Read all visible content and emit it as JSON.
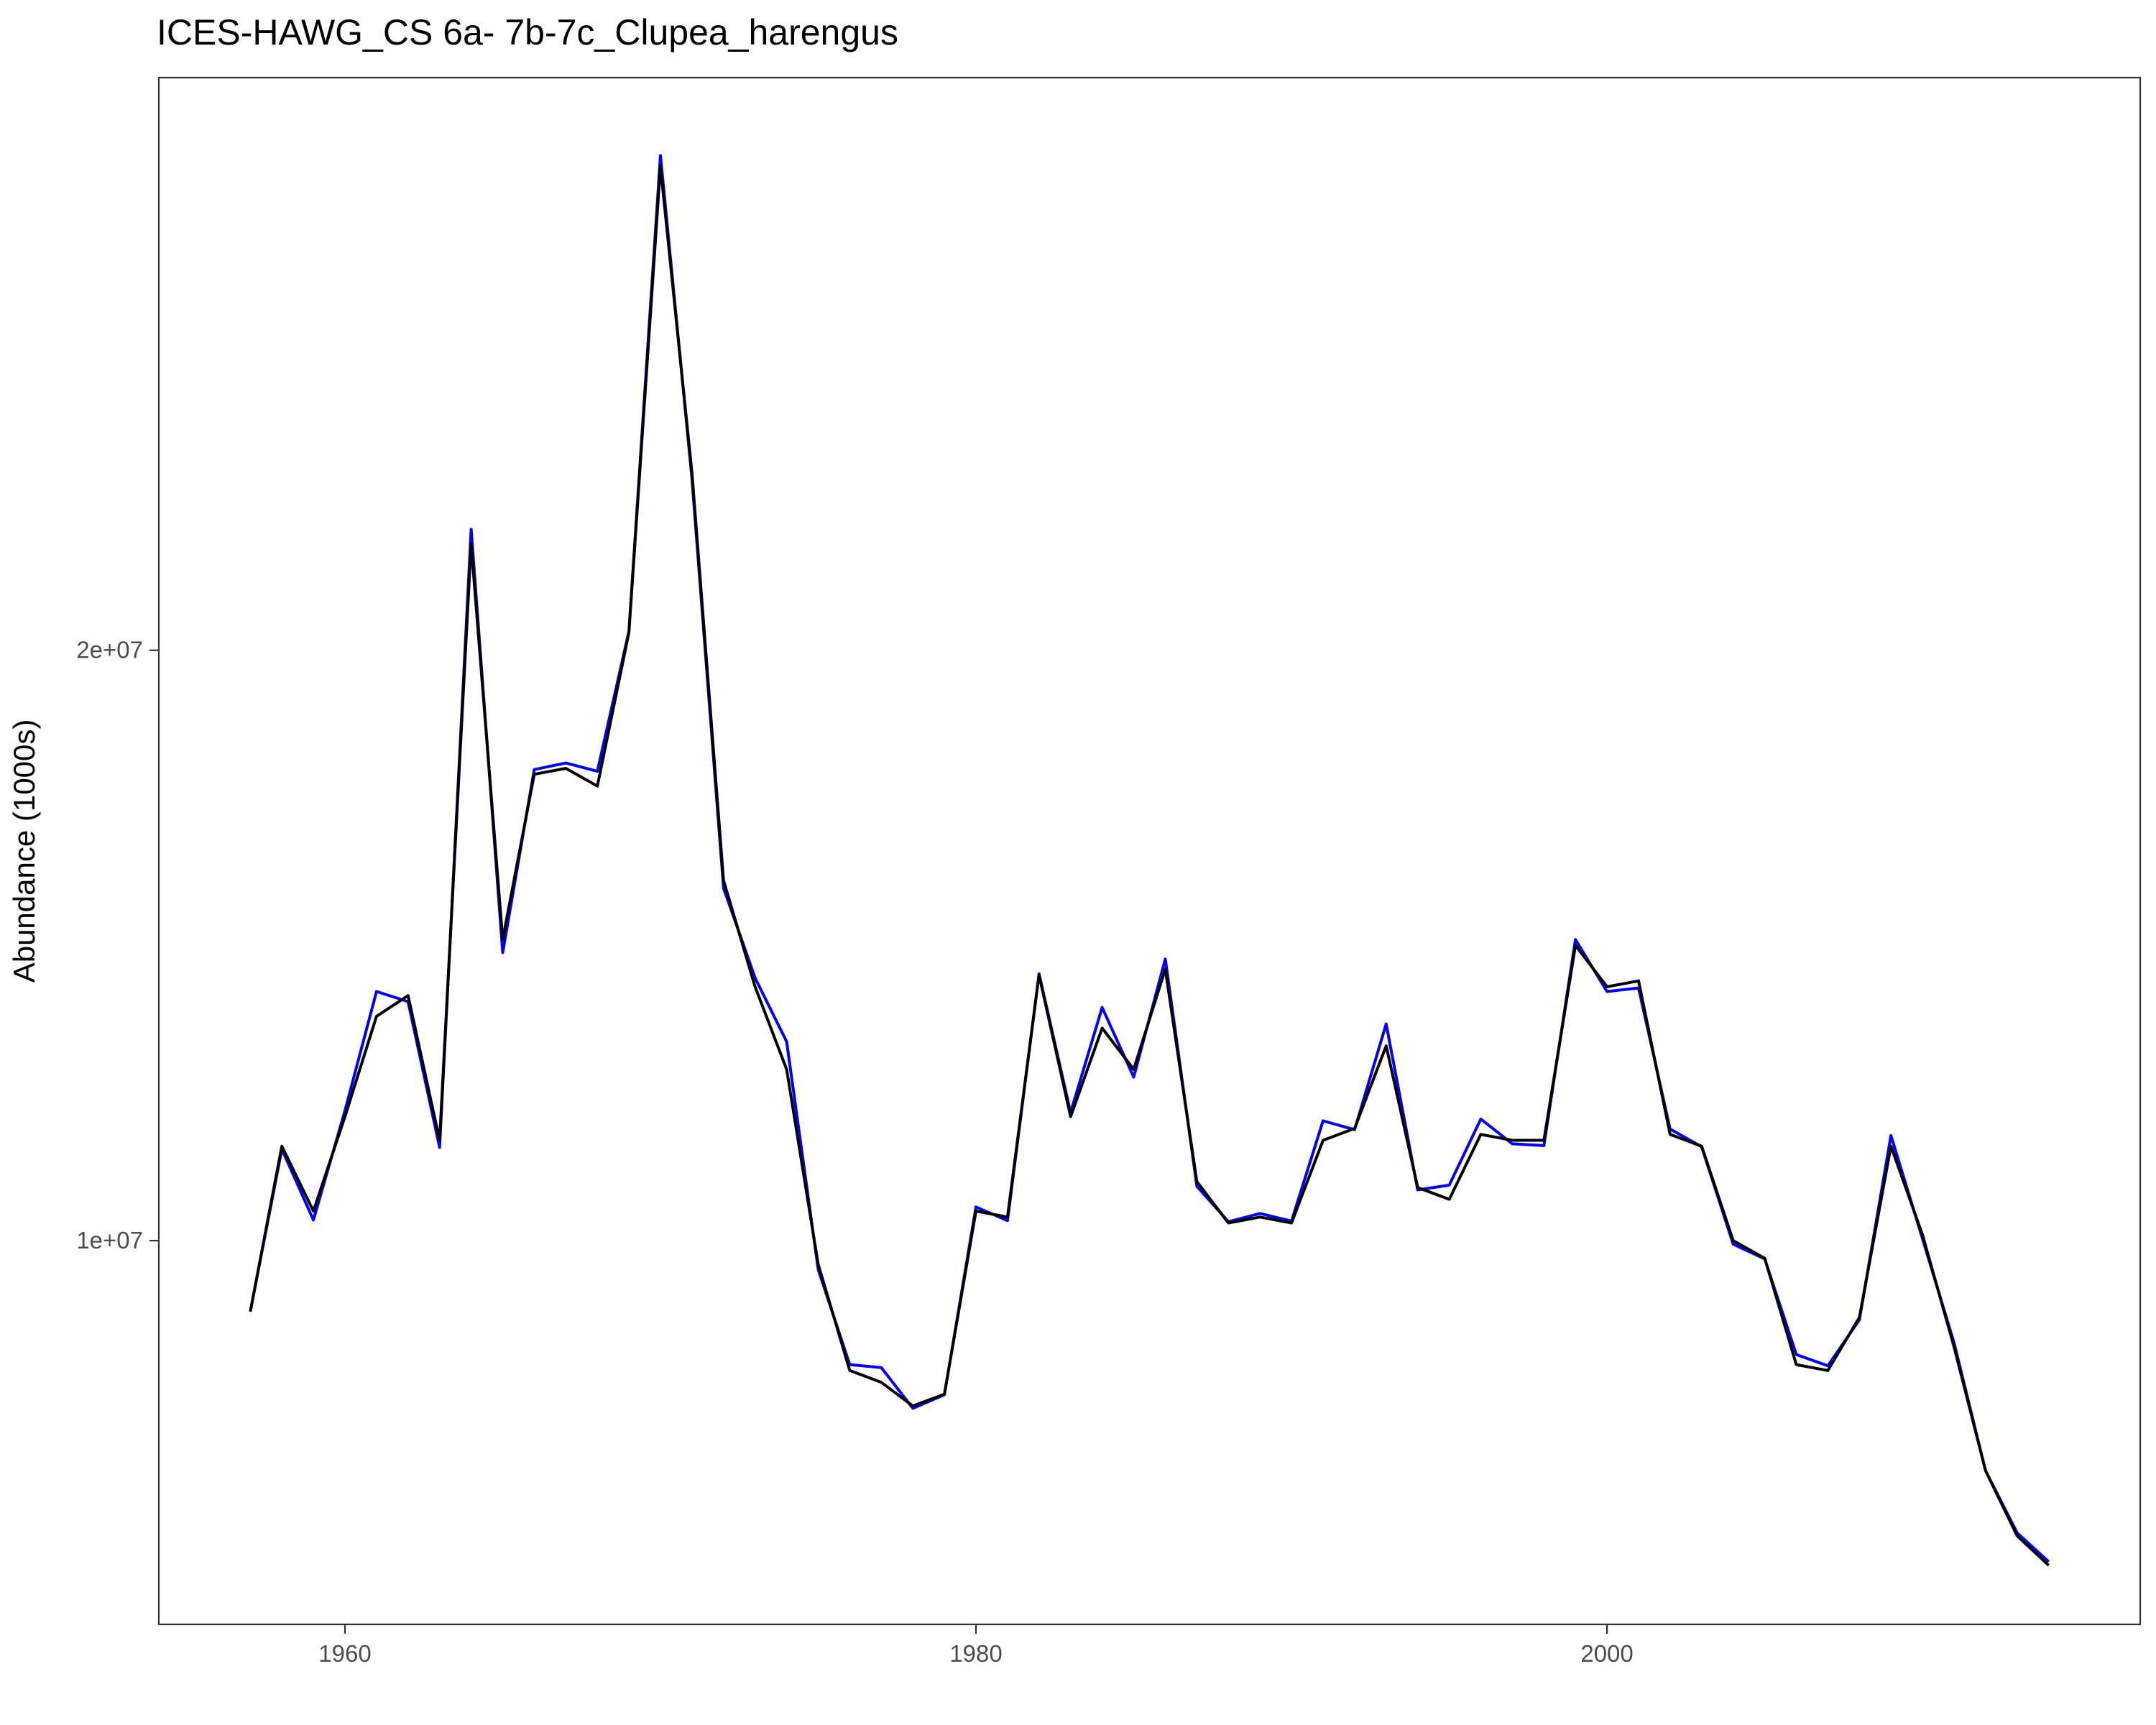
{
  "chart_data": {
    "type": "line",
    "title": "ICES-HAWG_CS 6a- 7b-7c_Clupea_harengus",
    "xlabel": "",
    "ylabel": "Abundance (1000s)",
    "xlim": [
      1954.1,
      2016.9
    ],
    "ylim": [
      3500000,
      29700000
    ],
    "x_ticks": [
      1960,
      1980,
      2000
    ],
    "x_tick_labels": [
      "1960",
      "1980",
      "2000"
    ],
    "y_ticks": [
      10000000,
      20000000
    ],
    "y_tick_labels": [
      "1e+07",
      "2e+07"
    ],
    "grid": false,
    "legend": "none",
    "x": [
      1957,
      1958,
      1959,
      1960,
      1961,
      1962,
      1963,
      1964,
      1965,
      1966,
      1967,
      1968,
      1969,
      1970,
      1971,
      1972,
      1973,
      1974,
      1975,
      1976,
      1977,
      1978,
      1979,
      1980,
      1981,
      1982,
      1983,
      1984,
      1985,
      1986,
      1987,
      1988,
      1989,
      1990,
      1991,
      1992,
      1993,
      1994,
      1995,
      1996,
      1997,
      1998,
      1999,
      2000,
      2001,
      2002,
      2003,
      2004,
      2005,
      2006,
      2007,
      2008,
      2009,
      2010,
      2011,
      2012,
      2013,
      2014,
      2015
    ],
    "series": [
      {
        "color": "#0000ff",
        "values": [
          8800000,
          11550000,
          10350000,
          12200000,
          14220000,
          14050000,
          11580000,
          22050000,
          14880000,
          17980000,
          18090000,
          17950000,
          20320000,
          28380000,
          22900000,
          15970000,
          14450000,
          13370000,
          9510000,
          7900000,
          7850000,
          7160000,
          7390000,
          10570000,
          10340000,
          14520000,
          12170000,
          13950000,
          12770000,
          14770000,
          10920000,
          10320000,
          10460000,
          10330000,
          12030000,
          11880000,
          13670000,
          10860000,
          10940000,
          12060000,
          11640000,
          11610000,
          15100000,
          14220000,
          14280000,
          11890000,
          11590000,
          9940000,
          9690000,
          8070000,
          7880000,
          8660000,
          11780000,
          10030000,
          8270000,
          6100000,
          5050000,
          4560000,
          null
        ]
      },
      {
        "color": "#000000",
        "values": [
          8800000,
          11600000,
          10500000,
          12100000,
          13800000,
          14150000,
          11700000,
          21800000,
          15100000,
          17900000,
          18000000,
          17700000,
          20300000,
          28200000,
          23000000,
          16100000,
          14300000,
          12900000,
          9600000,
          7800000,
          7600000,
          7200000,
          7400000,
          10500000,
          10400000,
          14500000,
          12100000,
          13600000,
          12900000,
          14600000,
          11000000,
          10300000,
          10400000,
          10300000,
          11700000,
          11900000,
          13300000,
          10900000,
          10700000,
          11800000,
          11700000,
          11700000,
          15000000,
          14300000,
          14400000,
          11800000,
          11600000,
          10000000,
          9700000,
          7900000,
          7800000,
          8700000,
          11600000,
          10100000,
          8200000,
          6100000,
          5000000,
          4500000,
          null
        ]
      }
    ]
  }
}
